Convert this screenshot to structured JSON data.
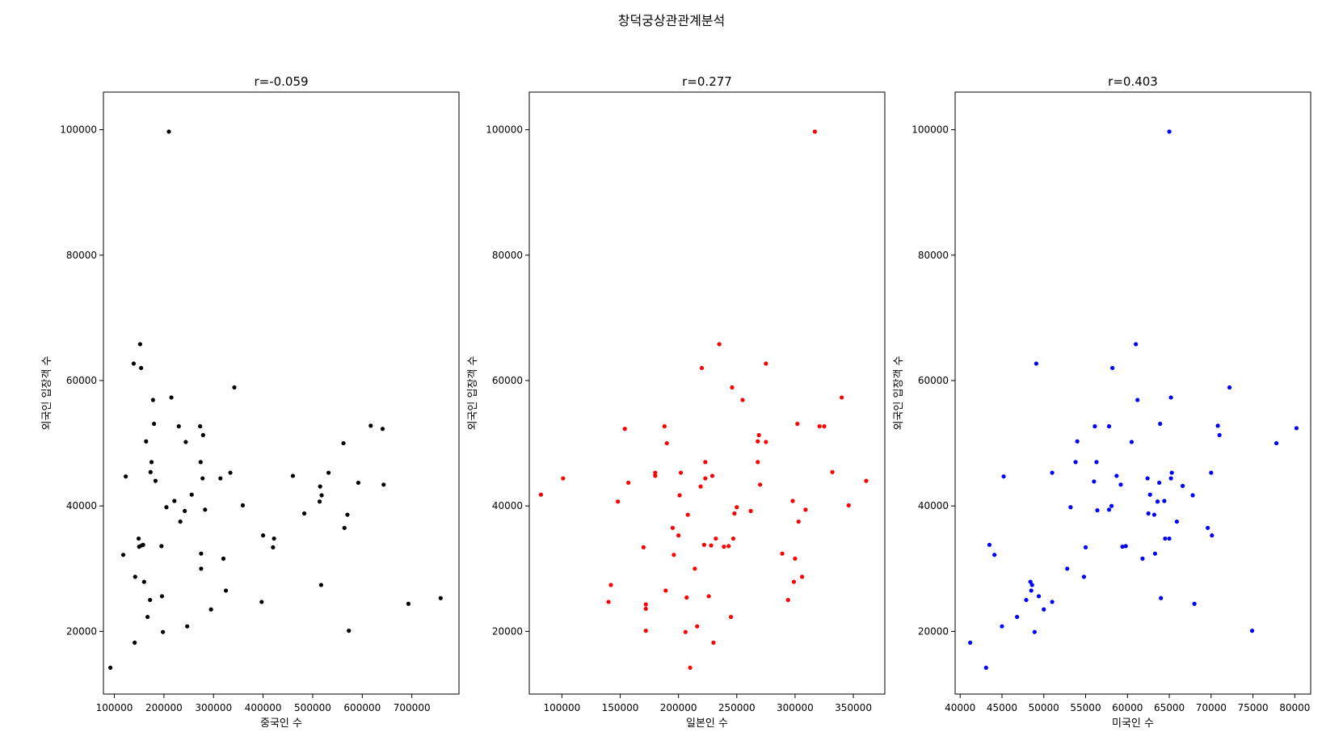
{
  "figure": {
    "suptitle": "창덕궁상관관계분석"
  },
  "chart_data": [
    {
      "type": "scatter",
      "title": "r=-0.059",
      "xlabel": "중국인 수",
      "ylabel": "외국인 입장객 수",
      "color": "#000000",
      "xlim": [
        78000,
        795000
      ],
      "ylim": [
        10000,
        106000
      ],
      "xticks": [
        100000,
        200000,
        300000,
        400000,
        500000,
        600000,
        700000
      ],
      "yticks": [
        20000,
        40000,
        60000,
        80000,
        100000
      ],
      "points": [
        [
          92000,
          14200
        ],
        [
          118000,
          32200
        ],
        [
          123000,
          44700
        ],
        [
          139000,
          62700
        ],
        [
          142000,
          28700
        ],
        [
          141000,
          18200
        ],
        [
          149000,
          34800
        ],
        [
          150000,
          33500
        ],
        [
          152000,
          65800
        ],
        [
          154000,
          62000
        ],
        [
          155000,
          33700
        ],
        [
          158000,
          33800
        ],
        [
          160000,
          27900
        ],
        [
          164000,
          50300
        ],
        [
          167000,
          22300
        ],
        [
          172000,
          25000
        ],
        [
          173000,
          45400
        ],
        [
          175000,
          47000
        ],
        [
          178000,
          56900
        ],
        [
          180000,
          53100
        ],
        [
          183000,
          44000
        ],
        [
          195000,
          33600
        ],
        [
          196000,
          25600
        ],
        [
          198000,
          19900
        ],
        [
          205000,
          39800
        ],
        [
          210000,
          99700
        ],
        [
          215000,
          57300
        ],
        [
          221000,
          40800
        ],
        [
          230000,
          52700
        ],
        [
          233000,
          37500
        ],
        [
          242000,
          39200
        ],
        [
          244000,
          50200
        ],
        [
          247000,
          20800
        ],
        [
          256000,
          41800
        ],
        [
          273000,
          52700
        ],
        [
          274000,
          47000
        ],
        [
          275000,
          30000
        ],
        [
          275000,
          32400
        ],
        [
          278000,
          44400
        ],
        [
          279000,
          51300
        ],
        [
          283000,
          39400
        ],
        [
          295000,
          23500
        ],
        [
          314000,
          44400
        ],
        [
          320000,
          31600
        ],
        [
          325000,
          26500
        ],
        [
          334000,
          45300
        ],
        [
          342000,
          58900
        ],
        [
          359000,
          40100
        ],
        [
          397000,
          24700
        ],
        [
          400000,
          35300
        ],
        [
          420000,
          33400
        ],
        [
          422000,
          34800
        ],
        [
          460000,
          44800
        ],
        [
          483000,
          38800
        ],
        [
          514000,
          40700
        ],
        [
          515000,
          43100
        ],
        [
          517000,
          27400
        ],
        [
          518000,
          41700
        ],
        [
          532000,
          45300
        ],
        [
          562000,
          50000
        ],
        [
          564000,
          36500
        ],
        [
          570000,
          38600
        ],
        [
          573000,
          20100
        ],
        [
          592000,
          43700
        ],
        [
          617000,
          52800
        ],
        [
          641000,
          52300
        ],
        [
          643000,
          43400
        ],
        [
          693000,
          24400
        ],
        [
          758000,
          25300
        ]
      ]
    },
    {
      "type": "scatter",
      "title": "r=0.277",
      "xlabel": "일본인 수",
      "ylabel": "외국인 입장객 수",
      "color": "#ff0000",
      "xlim": [
        72000,
        377000
      ],
      "ylim": [
        10000,
        106000
      ],
      "xticks": [
        100000,
        150000,
        200000,
        250000,
        300000,
        350000
      ],
      "yticks": [
        20000,
        40000,
        60000,
        80000,
        100000
      ],
      "points": [
        [
          82000,
          41800
        ],
        [
          101000,
          44400
        ],
        [
          140000,
          24700
        ],
        [
          142000,
          27400
        ],
        [
          148000,
          40700
        ],
        [
          154000,
          52300
        ],
        [
          157000,
          43700
        ],
        [
          170000,
          33400
        ],
        [
          172000,
          24300
        ],
        [
          172000,
          23600
        ],
        [
          172000,
          20100
        ],
        [
          180000,
          45300
        ],
        [
          180000,
          44800
        ],
        [
          188000,
          52700
        ],
        [
          189000,
          26500
        ],
        [
          190000,
          50000
        ],
        [
          195000,
          36500
        ],
        [
          196000,
          32200
        ],
        [
          200000,
          35300
        ],
        [
          201000,
          41700
        ],
        [
          202000,
          45300
        ],
        [
          206000,
          19900
        ],
        [
          207000,
          25400
        ],
        [
          208000,
          38600
        ],
        [
          210000,
          14200
        ],
        [
          214000,
          30000
        ],
        [
          216000,
          20800
        ],
        [
          219000,
          43100
        ],
        [
          220000,
          62000
        ],
        [
          222000,
          33800
        ],
        [
          223000,
          44400
        ],
        [
          223000,
          47000
        ],
        [
          226000,
          25600
        ],
        [
          228000,
          33700
        ],
        [
          229000,
          44800
        ],
        [
          230000,
          18200
        ],
        [
          232000,
          34800
        ],
        [
          235000,
          65800
        ],
        [
          239000,
          33500
        ],
        [
          243000,
          33600
        ],
        [
          245000,
          22300
        ],
        [
          246000,
          58900
        ],
        [
          247000,
          34800
        ],
        [
          248000,
          38800
        ],
        [
          250000,
          39800
        ],
        [
          255000,
          56900
        ],
        [
          262000,
          39200
        ],
        [
          268000,
          50300
        ],
        [
          269000,
          51300
        ],
        [
          268000,
          47000
        ],
        [
          270000,
          43400
        ],
        [
          275000,
          62700
        ],
        [
          275000,
          50200
        ],
        [
          289000,
          32400
        ],
        [
          294000,
          25000
        ],
        [
          298000,
          40800
        ],
        [
          299000,
          27900
        ],
        [
          300000,
          31600
        ],
        [
          302000,
          53100
        ],
        [
          303000,
          37500
        ],
        [
          306000,
          28700
        ],
        [
          309000,
          39400
        ],
        [
          317000,
          99700
        ],
        [
          321000,
          52700
        ],
        [
          325000,
          52700
        ],
        [
          332000,
          45400
        ],
        [
          340000,
          57300
        ],
        [
          346000,
          40100
        ],
        [
          361000,
          44000
        ]
      ]
    },
    {
      "type": "scatter",
      "title": "r=0.403",
      "xlabel": "미국인 수",
      "ylabel": "외국인 입장객 수",
      "color": "#0000ff",
      "xlim": [
        39400,
        81900
      ],
      "ylim": [
        10000,
        106000
      ],
      "xticks": [
        40000,
        45000,
        50000,
        55000,
        60000,
        65000,
        70000,
        75000,
        80000
      ],
      "yticks": [
        20000,
        40000,
        60000,
        80000,
        100000
      ],
      "points": [
        [
          41200,
          18200
        ],
        [
          43100,
          14200
        ],
        [
          43500,
          33800
        ],
        [
          44100,
          32200
        ],
        [
          45000,
          20800
        ],
        [
          45200,
          44700
        ],
        [
          46800,
          22300
        ],
        [
          47900,
          25000
        ],
        [
          48400,
          27900
        ],
        [
          48600,
          27400
        ],
        [
          48500,
          26500
        ],
        [
          49100,
          62700
        ],
        [
          48900,
          19900
        ],
        [
          49400,
          25600
        ],
        [
          50000,
          23500
        ],
        [
          51000,
          24700
        ],
        [
          51000,
          45300
        ],
        [
          52800,
          30000
        ],
        [
          53200,
          39800
        ],
        [
          53800,
          47000
        ],
        [
          54000,
          50300
        ],
        [
          54800,
          28700
        ],
        [
          55000,
          33400
        ],
        [
          56000,
          43900
        ],
        [
          56100,
          52700
        ],
        [
          56300,
          47000
        ],
        [
          56400,
          39300
        ],
        [
          57800,
          52700
        ],
        [
          57800,
          39400
        ],
        [
          58100,
          40000
        ],
        [
          58200,
          62000
        ],
        [
          58700,
          44800
        ],
        [
          59200,
          43400
        ],
        [
          59400,
          33500
        ],
        [
          59800,
          33600
        ],
        [
          60500,
          50200
        ],
        [
          61000,
          65800
        ],
        [
          61200,
          56900
        ],
        [
          61800,
          31600
        ],
        [
          62400,
          44400
        ],
        [
          62500,
          38800
        ],
        [
          62700,
          41800
        ],
        [
          63200,
          38600
        ],
        [
          63300,
          32400
        ],
        [
          63600,
          40700
        ],
        [
          63800,
          43700
        ],
        [
          63900,
          53100
        ],
        [
          64000,
          25300
        ],
        [
          64400,
          40800
        ],
        [
          64500,
          34800
        ],
        [
          65000,
          99700
        ],
        [
          65000,
          34800
        ],
        [
          65200,
          57300
        ],
        [
          65200,
          44400
        ],
        [
          65300,
          45300
        ],
        [
          65900,
          37500
        ],
        [
          66600,
          43200
        ],
        [
          67800,
          41700
        ],
        [
          68000,
          24400
        ],
        [
          69600,
          36500
        ],
        [
          70000,
          45300
        ],
        [
          70100,
          35300
        ],
        [
          70800,
          52800
        ],
        [
          71000,
          51300
        ],
        [
          72200,
          58900
        ],
        [
          74900,
          20100
        ],
        [
          77800,
          50000
        ],
        [
          80200,
          52400
        ]
      ]
    }
  ]
}
